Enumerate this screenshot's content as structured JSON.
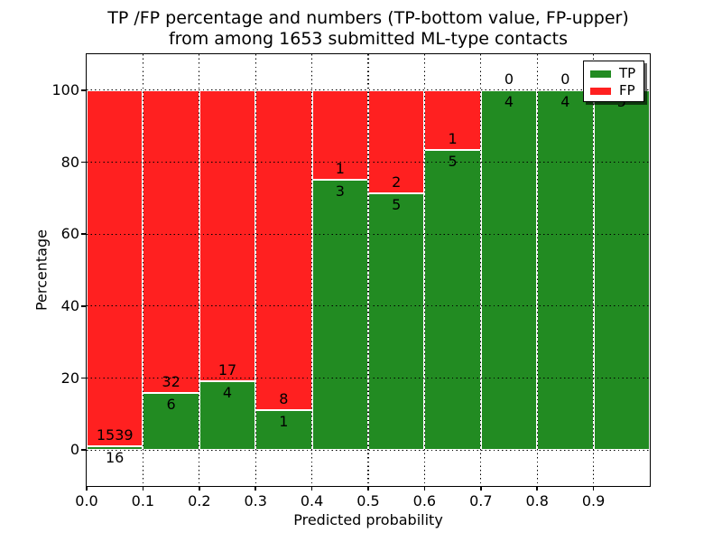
{
  "chart_data": {
    "type": "bar",
    "stacked": true,
    "unit": "percent",
    "title_lines": [
      "TP /FP percentage and numbers (TP-bottom value, FP-upper)",
      "from among 1653 submitted ML-type contacts"
    ],
    "total_submitted_contacts": 1653,
    "xlabel": "Predicted probability",
    "ylabel": "Percentage",
    "bin_edges": [
      0.0,
      0.1,
      0.2,
      0.3,
      0.4,
      0.5,
      0.6,
      0.7,
      0.8,
      0.9,
      1.0
    ],
    "x_tick_labels": [
      "0.0",
      "0.1",
      "0.2",
      "0.3",
      "0.4",
      "0.5",
      "0.6",
      "0.7",
      "0.8",
      "0.9"
    ],
    "y_tick_values": [
      0,
      20,
      40,
      60,
      80,
      100
    ],
    "y_tick_labels": [
      "0",
      "20",
      "40",
      "60",
      "80",
      "100"
    ],
    "xlim": [
      0.0,
      1.0
    ],
    "ylim": [
      -10,
      110
    ],
    "grid": "dotted",
    "series": [
      {
        "name": "TP",
        "color": "#228b22",
        "counts": [
          16,
          6,
          4,
          1,
          3,
          5,
          5,
          4,
          4,
          5
        ],
        "percent": [
          1.03,
          15.79,
          19.05,
          11.11,
          75.0,
          71.43,
          83.33,
          100.0,
          100.0,
          100.0
        ]
      },
      {
        "name": "FP",
        "color": "#ff2020",
        "counts": [
          1539,
          32,
          17,
          8,
          1,
          2,
          1,
          0,
          0,
          0
        ],
        "percent": [
          98.97,
          84.21,
          80.95,
          88.89,
          25.0,
          28.57,
          16.67,
          0.0,
          0.0,
          0.0
        ]
      }
    ],
    "legend": {
      "position": "upper right",
      "entries": [
        {
          "label": "TP",
          "color": "#228b22"
        },
        {
          "label": "FP",
          "color": "#ff2020"
        }
      ]
    }
  }
}
